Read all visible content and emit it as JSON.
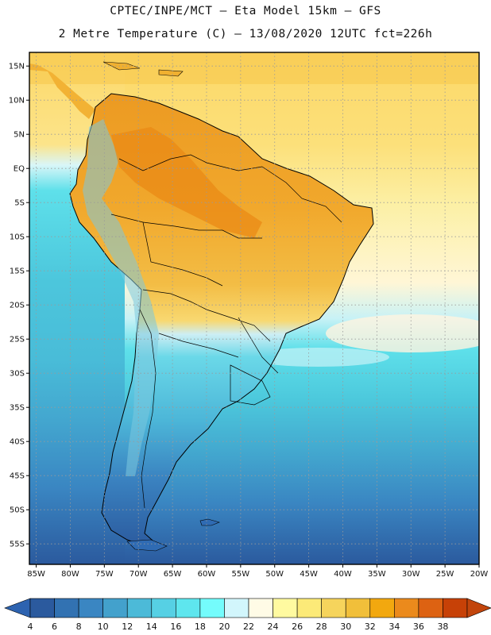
{
  "header": {
    "line1": "CPTEC/INPE/MCT —  Eta Model 15km — GFS",
    "line2": "2 Metre Temperature (C) — 13/08/2020 12UTC fct=226h"
  },
  "map": {
    "lat_range": [
      17,
      -58
    ],
    "lon_range": [
      -86,
      -20
    ],
    "lat_labels": [
      "15N",
      "10N",
      "5N",
      "EQ",
      "5S",
      "10S",
      "15S",
      "20S",
      "25S",
      "30S",
      "35S",
      "40S",
      "45S",
      "50S",
      "55S"
    ],
    "lon_labels": [
      "85W",
      "80W",
      "75W",
      "70W",
      "65W",
      "60W",
      "55W",
      "50W",
      "45W",
      "40W",
      "35W",
      "30W",
      "25W",
      "20W"
    ],
    "lat_values": [
      15,
      10,
      5,
      0,
      -5,
      -10,
      -15,
      -20,
      -25,
      -30,
      -35,
      -40,
      -45,
      -50,
      -55
    ],
    "lon_values": [
      -85,
      -80,
      -75,
      -70,
      -65,
      -60,
      -55,
      -50,
      -45,
      -40,
      -35,
      -30,
      -25,
      -20
    ]
  },
  "colorbar": {
    "labels": [
      "4",
      "6",
      "8",
      "10",
      "12",
      "14",
      "16",
      "18",
      "20",
      "22",
      "24",
      "26",
      "28",
      "30",
      "32",
      "34",
      "36",
      "38"
    ],
    "colors": [
      "#2b5a9e",
      "#3272b2",
      "#3a86c2",
      "#43a1cc",
      "#4cbad8",
      "#56d0e4",
      "#5ee6ee",
      "#74fcfc",
      "#d2f6fc",
      "#fffbe6",
      "#fffaa0",
      "#fcea78",
      "#f6d45c",
      "#f1bf3a",
      "#f2a80f",
      "#eb8a1c",
      "#dd6212",
      "#c74107"
    ],
    "under_color": "#2d63b0",
    "over_color": "#c2450c"
  },
  "legend_colors": {
    "frame": "#000000",
    "grid": "#9a9a9a"
  }
}
